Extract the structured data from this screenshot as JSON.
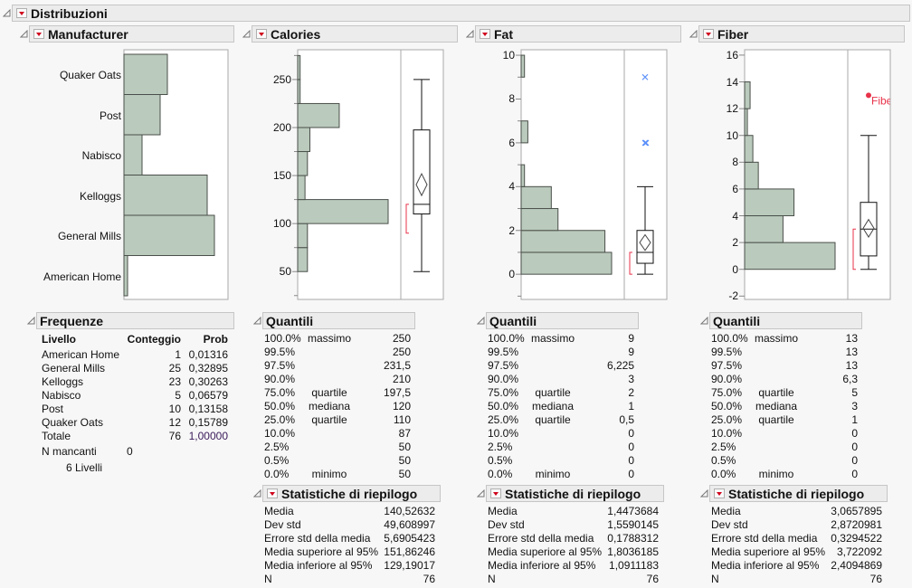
{
  "title": "Distribuzioni",
  "colors": {
    "bar_fill": "#bacabc",
    "bar_stroke": "#4a4f4a",
    "shortest_half": "#e8334a",
    "outlier": "#5b8ff9",
    "labeled_point": "#e8334a",
    "header_bg": "#ececec"
  },
  "manufacturer": {
    "title": "Manufacturer",
    "frequencies": {
      "title": "Frequenze",
      "headers": {
        "level": "Livello",
        "count": "Conteggio",
        "prob": "Prob"
      },
      "rows": [
        {
          "level": "American Home",
          "count": "1",
          "prob": "0,01316"
        },
        {
          "level": "General Mills",
          "count": "25",
          "prob": "0,32895"
        },
        {
          "level": "Kelloggs",
          "count": "23",
          "prob": "0,30263"
        },
        {
          "level": "Nabisco",
          "count": "5",
          "prob": "0,06579"
        },
        {
          "level": "Post",
          "count": "10",
          "prob": "0,13158"
        },
        {
          "level": "Quaker Oats",
          "count": "12",
          "prob": "0,15789"
        },
        {
          "level": "Totale",
          "count": "76",
          "prob": "1,00000"
        }
      ],
      "missing_label": "N mancanti",
      "missing_value": "0",
      "levels_note": "6  Livelli"
    }
  },
  "variables": [
    {
      "name": "Calories",
      "quantiles_title": "Quantili",
      "quantiles": [
        {
          "pct": "100.0%",
          "label": "massimo",
          "value": "250"
        },
        {
          "pct": "99.5%",
          "label": "",
          "value": "250"
        },
        {
          "pct": "97.5%",
          "label": "",
          "value": "231,5"
        },
        {
          "pct": "90.0%",
          "label": "",
          "value": "210"
        },
        {
          "pct": "75.0%",
          "label": "quartile",
          "value": "197,5"
        },
        {
          "pct": "50.0%",
          "label": "mediana",
          "value": "120"
        },
        {
          "pct": "25.0%",
          "label": "quartile",
          "value": "110"
        },
        {
          "pct": "10.0%",
          "label": "",
          "value": "87"
        },
        {
          "pct": "2.5%",
          "label": "",
          "value": "50"
        },
        {
          "pct": "0.5%",
          "label": "",
          "value": "50"
        },
        {
          "pct": "0.0%",
          "label": "minimo",
          "value": "50"
        }
      ],
      "summary_title": "Statistiche di riepilogo",
      "summary": [
        {
          "label": "Media",
          "value": "140,52632"
        },
        {
          "label": "Dev std",
          "value": "49,608997"
        },
        {
          "label": "Errore std della media",
          "value": "5,6905423"
        },
        {
          "label": "Media superiore al 95%",
          "value": "151,86246"
        },
        {
          "label": "Media inferiore al 95%",
          "value": "129,19017"
        },
        {
          "label": "N",
          "value": "76"
        }
      ]
    },
    {
      "name": "Fat",
      "quantiles_title": "Quantili",
      "quantiles": [
        {
          "pct": "100.0%",
          "label": "massimo",
          "value": "9"
        },
        {
          "pct": "99.5%",
          "label": "",
          "value": "9"
        },
        {
          "pct": "97.5%",
          "label": "",
          "value": "6,225"
        },
        {
          "pct": "90.0%",
          "label": "",
          "value": "3"
        },
        {
          "pct": "75.0%",
          "label": "quartile",
          "value": "2"
        },
        {
          "pct": "50.0%",
          "label": "mediana",
          "value": "1"
        },
        {
          "pct": "25.0%",
          "label": "quartile",
          "value": "0,5"
        },
        {
          "pct": "10.0%",
          "label": "",
          "value": "0"
        },
        {
          "pct": "2.5%",
          "label": "",
          "value": "0"
        },
        {
          "pct": "0.5%",
          "label": "",
          "value": "0"
        },
        {
          "pct": "0.0%",
          "label": "minimo",
          "value": "0"
        }
      ],
      "summary_title": "Statistiche di riepilogo",
      "summary": [
        {
          "label": "Media",
          "value": "1,4473684"
        },
        {
          "label": "Dev std",
          "value": "1,5590145"
        },
        {
          "label": "Errore std della media",
          "value": "0,1788312"
        },
        {
          "label": "Media superiore al 95%",
          "value": "1,8036185"
        },
        {
          "label": "Media inferiore al 95%",
          "value": "1,0911183"
        },
        {
          "label": "N",
          "value": "76"
        }
      ]
    },
    {
      "name": "Fiber",
      "quantiles_title": "Quantili",
      "quantiles": [
        {
          "pct": "100.0%",
          "label": "massimo",
          "value": "13"
        },
        {
          "pct": "99.5%",
          "label": "",
          "value": "13"
        },
        {
          "pct": "97.5%",
          "label": "",
          "value": "13"
        },
        {
          "pct": "90.0%",
          "label": "",
          "value": "6,3"
        },
        {
          "pct": "75.0%",
          "label": "quartile",
          "value": "5"
        },
        {
          "pct": "50.0%",
          "label": "mediana",
          "value": "3"
        },
        {
          "pct": "25.0%",
          "label": "quartile",
          "value": "1"
        },
        {
          "pct": "10.0%",
          "label": "",
          "value": "0"
        },
        {
          "pct": "2.5%",
          "label": "",
          "value": "0"
        },
        {
          "pct": "0.5%",
          "label": "",
          "value": "0"
        },
        {
          "pct": "0.0%",
          "label": "minimo",
          "value": "0"
        }
      ],
      "summary_title": "Statistiche di riepilogo",
      "summary": [
        {
          "label": "Media",
          "value": "3,0657895"
        },
        {
          "label": "Dev std",
          "value": "2,8720981"
        },
        {
          "label": "Errore std della media",
          "value": "0,3294522"
        },
        {
          "label": "Media superiore al 95%",
          "value": "3,722092"
        },
        {
          "label": "Media inferiore al 95%",
          "value": "2,4094869"
        },
        {
          "label": "N",
          "value": "76"
        }
      ]
    }
  ],
  "chart_data": [
    {
      "type": "bar",
      "orientation": "horizontal",
      "variable": "Manufacturer",
      "categories": [
        "American Home",
        "General Mills",
        "Kelloggs",
        "Nabisco",
        "Post",
        "Quaker Oats"
      ],
      "values": [
        1,
        25,
        23,
        5,
        10,
        12
      ]
    },
    {
      "type": "histogram",
      "variable": "Calories",
      "orientation": "horizontal",
      "bin_edges": [
        50,
        75,
        100,
        125,
        150,
        175,
        200,
        225,
        250,
        275
      ],
      "counts": [
        4,
        4,
        37,
        3,
        4,
        5,
        17,
        1,
        1
      ],
      "ylim": [
        21,
        281
      ],
      "ticks": [
        50,
        100,
        150,
        200,
        250
      ],
      "minor_ticks": [
        25,
        75,
        125,
        175,
        225,
        275
      ],
      "boxplot": {
        "min": 50,
        "q1": 110,
        "median": 120,
        "q3": 197.5,
        "max": 250,
        "mean": 140.52632,
        "ci": [
          129.19017,
          151.86246
        ],
        "shortest_half": [
          90,
          120
        ],
        "outliers": []
      }
    },
    {
      "type": "histogram",
      "variable": "Fat",
      "orientation": "horizontal",
      "bin_edges": [
        0,
        1,
        2,
        3,
        4,
        5,
        6,
        7,
        8,
        9,
        10
      ],
      "counts": [
        27,
        25,
        11,
        9,
        1,
        0,
        2,
        0,
        0,
        1
      ],
      "ylim": [
        -1.15,
        10.25
      ],
      "ticks": [
        0,
        2,
        4,
        6,
        8,
        10
      ],
      "minor_ticks": [
        -1,
        1,
        3,
        5,
        7,
        9
      ],
      "boxplot": {
        "min": 0,
        "q1": 0.5,
        "median": 1,
        "q3": 2,
        "max": 4,
        "mean": 1.4473684,
        "ci": [
          1.0911183,
          1.8036185
        ],
        "shortest_half": [
          0,
          1
        ],
        "outliers": [
          6,
          6,
          9
        ]
      }
    },
    {
      "type": "histogram",
      "variable": "Fiber",
      "orientation": "horizontal",
      "bin_edges": [
        0,
        2,
        4,
        6,
        8,
        10,
        12,
        14
      ],
      "counts": [
        33,
        14,
        18,
        5,
        3,
        1,
        2
      ],
      "ylim": [
        -2.25,
        16.4
      ],
      "ticks": [
        -2,
        0,
        2,
        4,
        6,
        8,
        10,
        12,
        14,
        16
      ],
      "minor_ticks": [],
      "boxplot": {
        "min": 0,
        "q1": 1,
        "median": 3,
        "q3": 5,
        "max": 10,
        "mean": 3.0657895,
        "ci": [
          2.4094869,
          3.722092
        ],
        "shortest_half": [
          0,
          3
        ],
        "outliers": []
      },
      "labeled_points": [
        {
          "value": 13,
          "label": "Fiber"
        }
      ]
    }
  ]
}
